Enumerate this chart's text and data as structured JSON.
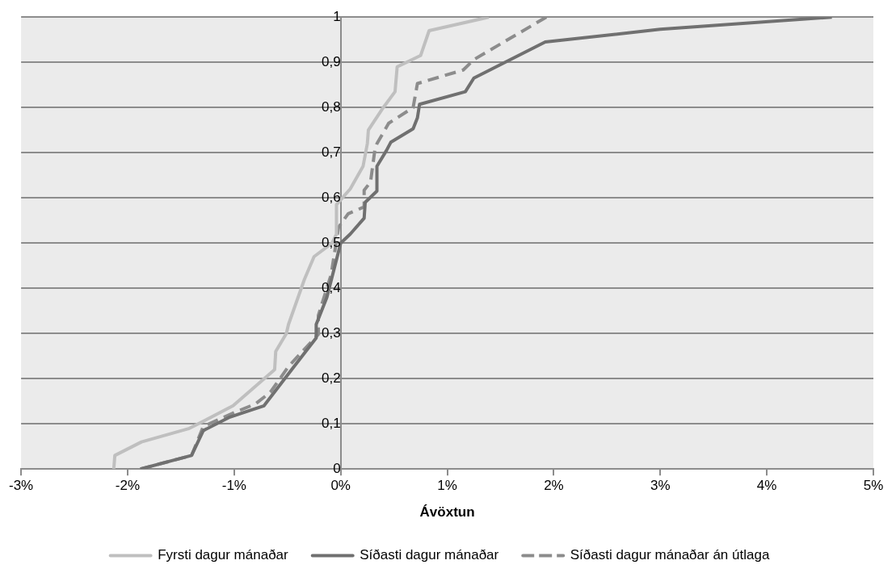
{
  "chart_data": {
    "type": "line",
    "xlabel": "Ávöxtun",
    "xlim": [
      -3,
      5
    ],
    "xticks": [
      {
        "value": -3,
        "label": "-3%"
      },
      {
        "value": -2,
        "label": "-2%"
      },
      {
        "value": -1,
        "label": "-1%"
      },
      {
        "value": 0,
        "label": "0%"
      },
      {
        "value": 1,
        "label": "1%"
      },
      {
        "value": 2,
        "label": "2%"
      },
      {
        "value": 3,
        "label": "3%"
      },
      {
        "value": 4,
        "label": "4%"
      },
      {
        "value": 5,
        "label": "5%"
      }
    ],
    "ylim": [
      0,
      1
    ],
    "yticks": [
      0,
      {
        "value": 0.1,
        "label": "0,1"
      },
      {
        "value": 0.2,
        "label": "0,2"
      },
      {
        "value": 0.3,
        "label": "0,3"
      },
      {
        "value": 0.4,
        "label": "0,4"
      },
      {
        "value": 0.5,
        "label": "0,5"
      },
      {
        "value": 0.6,
        "label": "0,6"
      },
      {
        "value": 0.7,
        "label": "0,7"
      },
      {
        "value": 0.8,
        "label": "0,8"
      },
      {
        "value": 0.9,
        "label": "0,9"
      },
      1
    ],
    "grid": "y",
    "legend": "bottom",
    "marker": "none",
    "series": [
      {
        "name": "Fyrsti dagur mánaðar",
        "color": "#bfbfbf",
        "line_style": "solid",
        "x": [
          -2.13,
          -2.12,
          -1.87,
          -1.42,
          -1.01,
          -0.62,
          -0.61,
          -0.51,
          -0.49,
          -0.34,
          -0.25,
          -0.08,
          -0.04,
          -0.04,
          0.09,
          0.21,
          0.25,
          0.26,
          0.4,
          0.51,
          0.53,
          0.75,
          0.83,
          1.39
        ],
        "values": [
          0,
          0.03,
          0.06,
          0.09,
          0.14,
          0.22,
          0.26,
          0.3,
          0.32,
          0.42,
          0.47,
          0.5,
          0.52,
          0.585,
          0.62,
          0.67,
          0.72,
          0.75,
          0.8,
          0.835,
          0.89,
          0.915,
          0.97,
          1
        ]
      },
      {
        "name": "Síðasti dagur mánaðar",
        "color": "#707070",
        "line_style": "solid",
        "x": [
          -1.88,
          -1.4,
          -1.29,
          -1.04,
          -0.72,
          -0.46,
          -0.23,
          -0.23,
          -0.13,
          0,
          0.09,
          0.22,
          0.23,
          0.34,
          0.34,
          0.43,
          0.47,
          0.68,
          0.72,
          0.74,
          1.17,
          1.25,
          1.92,
          3,
          4.61
        ],
        "values": [
          0,
          0.03,
          0.085,
          0.115,
          0.14,
          0.22,
          0.29,
          0.32,
          0.38,
          0.5,
          0.52,
          0.555,
          0.59,
          0.615,
          0.67,
          0.705,
          0.723,
          0.753,
          0.777,
          0.807,
          0.835,
          0.865,
          0.945,
          0.973,
          1
        ]
      },
      {
        "name": "Síðasti dagur mánaðar án útlaga",
        "color": "#8c8c8c",
        "line_style": "dashed",
        "x": [
          -1.88,
          -1.4,
          -1.29,
          -0.99,
          -0.8,
          -0.66,
          -0.49,
          -0.21,
          -0.21,
          -0.09,
          -0.02,
          0.07,
          0.22,
          0.22,
          0.28,
          0.32,
          0.34,
          0.45,
          0.68,
          0.72,
          1.15,
          1.25,
          1.93
        ],
        "values": [
          0,
          0.03,
          0.094,
          0.126,
          0.144,
          0.17,
          0.227,
          0.298,
          0.34,
          0.43,
          0.535,
          0.565,
          0.58,
          0.617,
          0.635,
          0.705,
          0.72,
          0.765,
          0.8,
          0.853,
          0.883,
          0.906,
          1
        ]
      }
    ]
  }
}
